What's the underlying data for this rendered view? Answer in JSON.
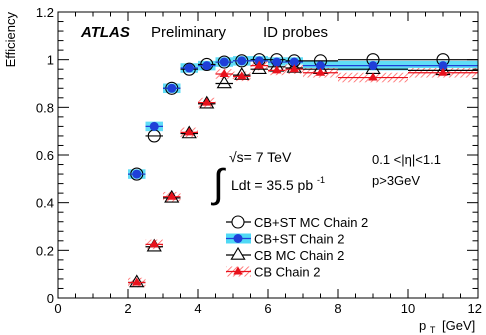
{
  "chart_data": {
    "type": "scatter",
    "xlabel": "p",
    "xlabel_sub": "T",
    "xlabel_unit": "[GeV]",
    "ylabel": "Efficiency",
    "xlim": [
      0,
      12
    ],
    "ylim": [
      0,
      1.2
    ],
    "x_ticks": [
      0,
      2,
      4,
      6,
      8,
      10,
      12
    ],
    "y_ticks": [
      0,
      0.2,
      0.4,
      0.6,
      0.8,
      1,
      1.2
    ],
    "x_tick_labels": [
      "0",
      "2",
      "4",
      "6",
      "8",
      "10",
      "12"
    ],
    "y_tick_labels": [
      "0",
      "0.2",
      "0.4",
      "0.6",
      "0.8",
      "1",
      "1.2"
    ],
    "grid": false,
    "legend_position": "bottom-center",
    "annotations": {
      "atlas": "ATLAS",
      "preliminary": "Preliminary",
      "probes": "ID probes",
      "sqrt_s": "√s= 7 TeV",
      "lumi_main": "Ldt = 35.5 pb",
      "lumi_exp": "-1",
      "eta_cut": "0.1 <|η|<1.1",
      "pt_cut": "p>3GeV"
    },
    "series": [
      {
        "name": "CB+ST MC Chain 2",
        "marker": "open-circle",
        "band_color": "#ffffff",
        "x": [
          2.25,
          2.75,
          3.25,
          3.75,
          4.25,
          4.75,
          5.25,
          5.75,
          6.25,
          6.75,
          7.5,
          9.0,
          11.0
        ],
        "xerr": [
          0.25,
          0.25,
          0.25,
          0.25,
          0.25,
          0.25,
          0.25,
          0.25,
          0.25,
          0.25,
          0.5,
          1.0,
          1.0
        ],
        "y": [
          0.52,
          0.68,
          0.88,
          0.96,
          0.98,
          0.99,
          0.995,
          1.0,
          1.0,
          0.995,
          0.995,
          1.0,
          1.0
        ]
      },
      {
        "name": "CB+ST Chain 2",
        "marker": "filled-circle",
        "color": "#1f3fd8",
        "band_color": "#4fd9f5",
        "x": [
          2.25,
          2.75,
          3.25,
          3.75,
          4.25,
          4.75,
          5.25,
          5.75,
          6.25,
          6.75,
          7.5,
          9.0,
          11.0
        ],
        "xerr": [
          0.25,
          0.25,
          0.25,
          0.25,
          0.25,
          0.25,
          0.25,
          0.25,
          0.25,
          0.25,
          0.5,
          1.0,
          1.0
        ],
        "y": [
          0.52,
          0.72,
          0.88,
          0.965,
          0.975,
          0.99,
          0.995,
          0.995,
          0.99,
          0.99,
          0.975,
          0.975,
          0.975
        ]
      },
      {
        "name": "CB MC Chain 2",
        "marker": "open-triangle",
        "band_color": "#ffffff",
        "x": [
          2.25,
          2.75,
          3.25,
          3.75,
          4.25,
          4.75,
          5.25,
          5.75,
          6.25,
          6.75,
          7.5,
          9.0,
          11.0
        ],
        "xerr": [
          0.25,
          0.25,
          0.25,
          0.25,
          0.25,
          0.25,
          0.25,
          0.25,
          0.25,
          0.25,
          0.5,
          1.0,
          1.0
        ],
        "y": [
          0.065,
          0.215,
          0.42,
          0.69,
          0.815,
          0.9,
          0.935,
          0.96,
          0.97,
          0.965,
          0.96,
          0.96,
          0.955
        ]
      },
      {
        "name": "CB Chain 2",
        "marker": "filled-triangle",
        "color": "#e8121c",
        "band_color": "#ff6060",
        "x": [
          2.25,
          2.75,
          3.25,
          3.75,
          4.25,
          4.75,
          5.25,
          5.75,
          6.25,
          6.75,
          7.5,
          9.0,
          11.0
        ],
        "xerr": [
          0.25,
          0.25,
          0.25,
          0.25,
          0.25,
          0.25,
          0.25,
          0.25,
          0.25,
          0.25,
          0.5,
          1.0,
          1.0
        ],
        "y": [
          0.065,
          0.225,
          0.425,
          0.695,
          0.82,
          0.94,
          0.93,
          0.975,
          0.955,
          0.96,
          0.945,
          0.925,
          0.945
        ]
      }
    ]
  }
}
